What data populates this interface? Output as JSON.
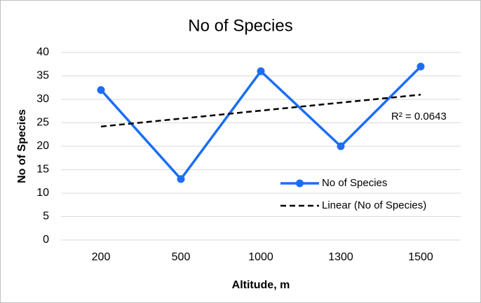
{
  "chart_data": {
    "type": "line",
    "title": "No of Species",
    "x_label": "Altitude, m",
    "y_label": "No of Species",
    "categories": [
      "200",
      "500",
      "1000",
      "1300",
      "1500"
    ],
    "series": [
      {
        "name": "No of Species",
        "color": "#1a6ef5",
        "values": [
          32,
          13,
          36,
          20,
          37
        ],
        "marker": true
      },
      {
        "name": "Linear (No of Species)",
        "color": "#000000",
        "values": [
          24.2,
          25.9,
          27.6,
          29.3,
          31.0
        ],
        "dashed": true
      }
    ],
    "annotation": "R² = 0.0643",
    "ylim": [
      0,
      40
    ],
    "yticks": [
      0,
      5,
      10,
      15,
      20,
      25,
      30,
      35,
      40
    ],
    "grid": true
  }
}
